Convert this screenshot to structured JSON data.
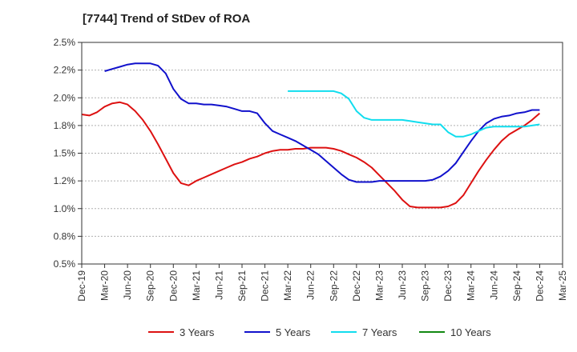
{
  "chart_data": {
    "type": "line",
    "title": "[7744]  Trend of StDev of ROA",
    "xlabel": "",
    "ylabel": "",
    "ylim": [
      0.5,
      2.5
    ],
    "y_ticks": [
      "0.5%",
      "0.8%",
      "1.0%",
      "1.2%",
      "1.5%",
      "1.8%",
      "2.0%",
      "2.2%",
      "2.5%"
    ],
    "y_tick_values": [
      0.5,
      0.75,
      1.0,
      1.25,
      1.5,
      1.75,
      2.0,
      2.25,
      2.5
    ],
    "x_ticks": [
      "Dec-19",
      "Mar-20",
      "Jun-20",
      "Sep-20",
      "Dec-20",
      "Mar-21",
      "Jun-21",
      "Sep-21",
      "Dec-21",
      "Mar-22",
      "Jun-22",
      "Sep-22",
      "Dec-22",
      "Mar-23",
      "Jun-23",
      "Sep-23",
      "Dec-23",
      "Mar-24",
      "Jun-24",
      "Sep-24",
      "Dec-24",
      "Mar-25"
    ],
    "x_unit": "months from Dec-19",
    "grid": "horizontal dashed",
    "legend_position": "bottom",
    "series": [
      {
        "name": "3 Years",
        "color": "#dd1111",
        "x": [
          0,
          1,
          2,
          3,
          4,
          5,
          6,
          7,
          8,
          9,
          10,
          11,
          12,
          13,
          14,
          15,
          16,
          17,
          18,
          19,
          20,
          21,
          22,
          23,
          24,
          25,
          26,
          27,
          28,
          29,
          30,
          31,
          32,
          33,
          34,
          35,
          36,
          37,
          38,
          39,
          40,
          41,
          42,
          43,
          44,
          45,
          46,
          47,
          48,
          49,
          50,
          51,
          52,
          53,
          54,
          55,
          56,
          57,
          58,
          59,
          60
        ],
        "y": [
          1.85,
          1.84,
          1.87,
          1.92,
          1.95,
          1.96,
          1.94,
          1.88,
          1.8,
          1.7,
          1.58,
          1.45,
          1.32,
          1.23,
          1.21,
          1.25,
          1.28,
          1.31,
          1.34,
          1.37,
          1.4,
          1.42,
          1.45,
          1.47,
          1.5,
          1.52,
          1.53,
          1.53,
          1.54,
          1.54,
          1.55,
          1.55,
          1.55,
          1.54,
          1.52,
          1.49,
          1.46,
          1.42,
          1.37,
          1.3,
          1.23,
          1.16,
          1.08,
          1.02,
          1.01,
          1.01,
          1.01,
          1.01,
          1.02,
          1.05,
          1.12,
          1.23,
          1.34,
          1.44,
          1.53,
          1.61,
          1.67,
          1.71,
          1.75,
          1.8,
          1.86
        ]
      },
      {
        "name": "5 Years",
        "color": "#1111cc",
        "x": [
          3,
          4,
          5,
          6,
          7,
          8,
          9,
          10,
          11,
          12,
          13,
          14,
          15,
          16,
          17,
          18,
          19,
          20,
          21,
          22,
          23,
          24,
          25,
          26,
          27,
          28,
          29,
          30,
          31,
          32,
          33,
          34,
          35,
          36,
          37,
          38,
          39,
          40,
          41,
          42,
          43,
          44,
          45,
          46,
          47,
          48,
          49,
          50,
          51,
          52,
          53,
          54,
          55,
          56,
          57,
          58,
          59,
          60
        ],
        "y": [
          2.24,
          2.26,
          2.28,
          2.3,
          2.31,
          2.31,
          2.31,
          2.29,
          2.22,
          2.08,
          1.99,
          1.95,
          1.95,
          1.94,
          1.94,
          1.93,
          1.92,
          1.9,
          1.88,
          1.88,
          1.86,
          1.77,
          1.7,
          1.67,
          1.64,
          1.61,
          1.57,
          1.53,
          1.49,
          1.43,
          1.37,
          1.31,
          1.26,
          1.24,
          1.24,
          1.24,
          1.25,
          1.25,
          1.25,
          1.25,
          1.25,
          1.25,
          1.25,
          1.26,
          1.29,
          1.34,
          1.41,
          1.51,
          1.61,
          1.7,
          1.77,
          1.81,
          1.83,
          1.84,
          1.86,
          1.87,
          1.89,
          1.89
        ]
      },
      {
        "name": "7 Years",
        "color": "#11ddee",
        "x": [
          27,
          28,
          29,
          30,
          31,
          32,
          33,
          34,
          35,
          36,
          37,
          38,
          39,
          40,
          41,
          42,
          43,
          44,
          45,
          46,
          47,
          48,
          49,
          50,
          51,
          52,
          53,
          54,
          55,
          56,
          57,
          58,
          59,
          60
        ],
        "y": [
          2.06,
          2.06,
          2.06,
          2.06,
          2.06,
          2.06,
          2.06,
          2.04,
          1.99,
          1.88,
          1.82,
          1.8,
          1.8,
          1.8,
          1.8,
          1.8,
          1.79,
          1.78,
          1.77,
          1.76,
          1.76,
          1.69,
          1.65,
          1.65,
          1.67,
          1.7,
          1.73,
          1.74,
          1.74,
          1.74,
          1.74,
          1.74,
          1.75,
          1.76
        ]
      },
      {
        "name": "10 Years",
        "color": "#118811",
        "x": [],
        "y": []
      }
    ]
  }
}
